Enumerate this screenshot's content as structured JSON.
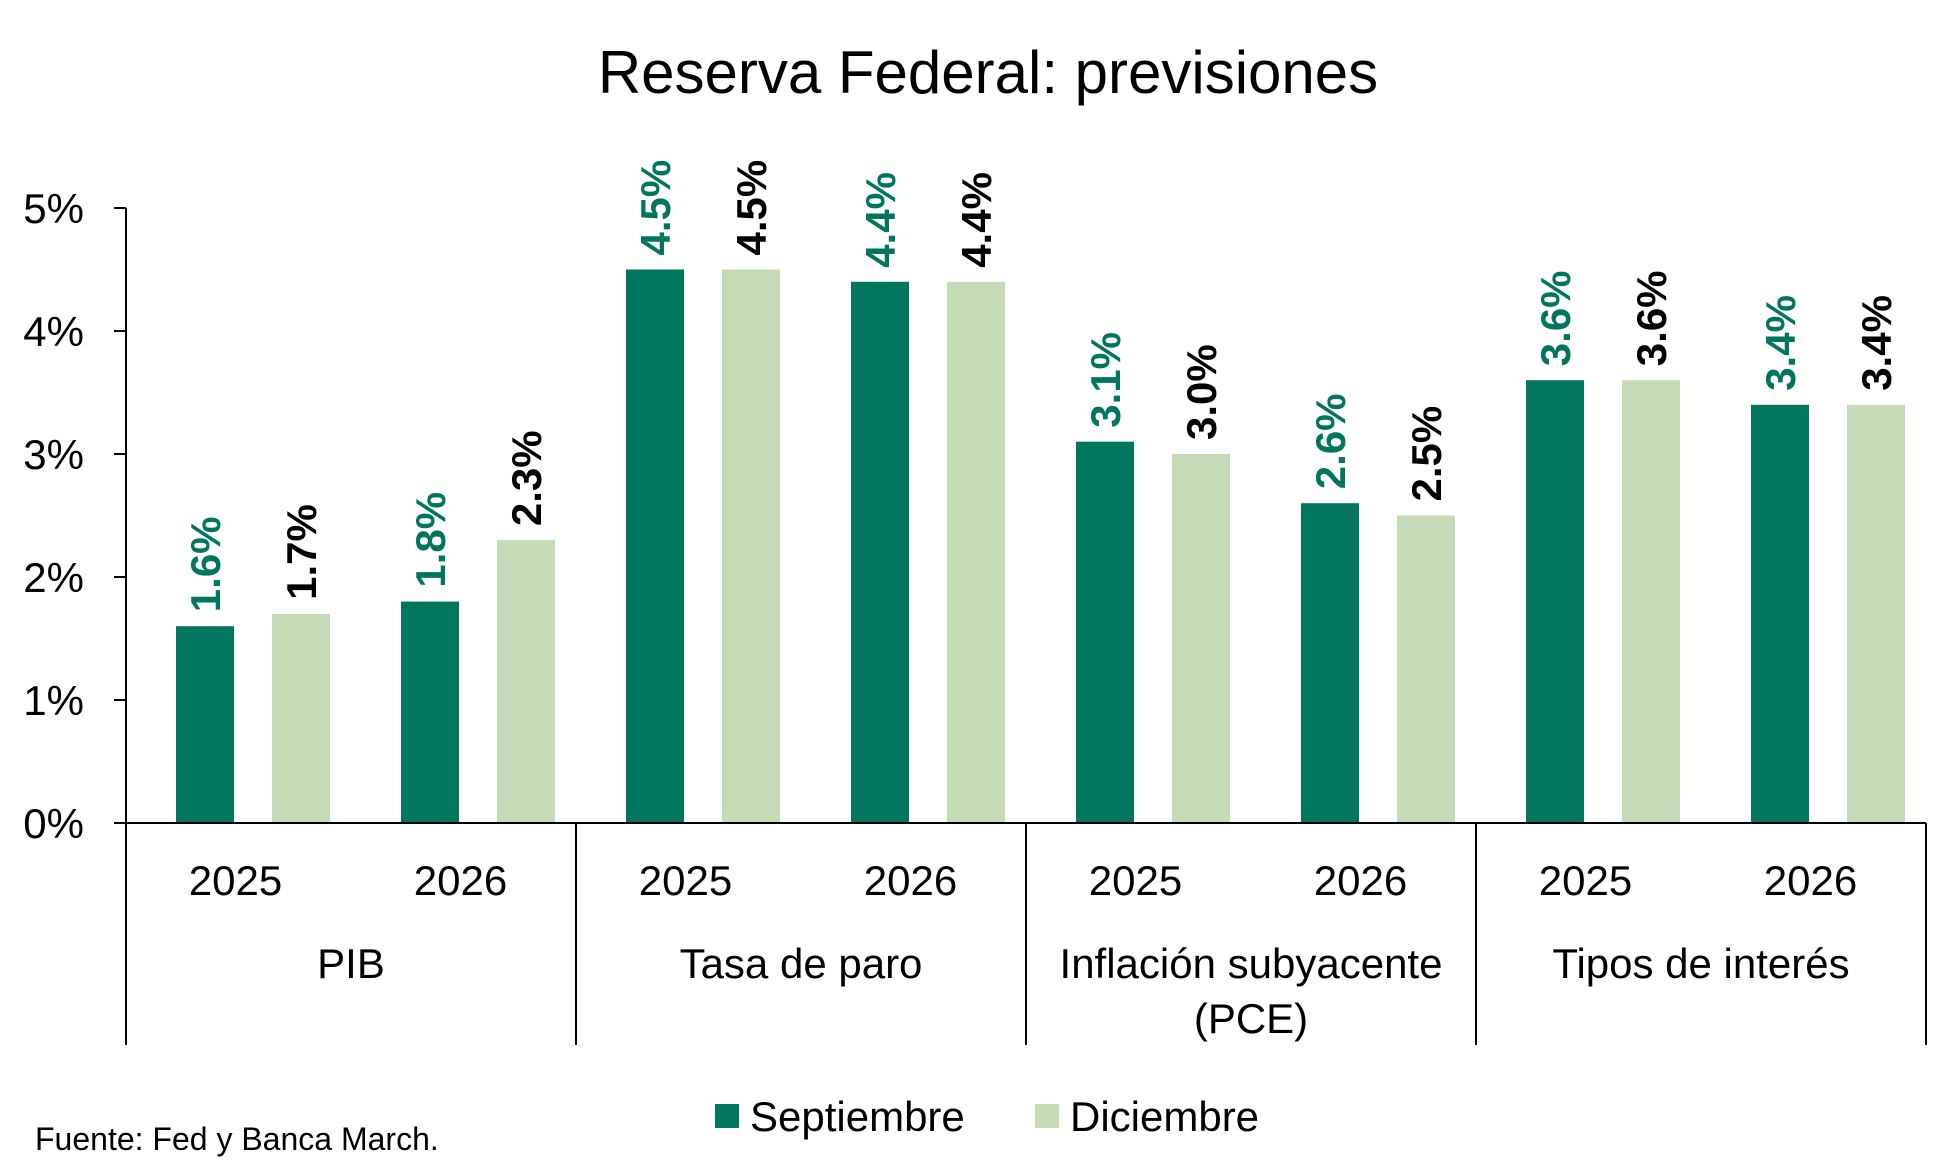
{
  "chart_data": {
    "type": "bar",
    "title": "Reserva Federal: previsiones",
    "groups": [
      {
        "label_lines": [
          "PIB"
        ],
        "categories": [
          "2025",
          "2026"
        ]
      },
      {
        "label_lines": [
          "Tasa de paro"
        ],
        "categories": [
          "2025",
          "2026"
        ]
      },
      {
        "label_lines": [
          "Inflación subyacente",
          "(PCE)"
        ],
        "categories": [
          "2025",
          "2026"
        ]
      },
      {
        "label_lines": [
          "Tipos de interés"
        ],
        "categories": [
          "2025",
          "2026"
        ]
      }
    ],
    "series": [
      {
        "name": "Septiembre",
        "color": "#00765F",
        "label_color": "#00765F",
        "values": [
          1.6,
          1.8,
          4.5,
          4.4,
          3.1,
          2.6,
          3.6,
          3.4
        ],
        "labels": [
          "1.6%",
          "1.8%",
          "4.5%",
          "4.4%",
          "3.1%",
          "2.6%",
          "3.6%",
          "3.4%"
        ]
      },
      {
        "name": "Diciembre",
        "color": "#C5DBB8",
        "label_color": "#000000",
        "values": [
          1.7,
          2.3,
          4.5,
          4.4,
          3.0,
          2.5,
          3.6,
          3.4
        ],
        "labels": [
          "1.7%",
          "2.3%",
          "4.5%",
          "4.4%",
          "3.0%",
          "2.5%",
          "3.6%",
          "3.4%"
        ]
      }
    ],
    "yaxis": {
      "min": 0,
      "max": 5,
      "ticks": [
        0,
        1,
        2,
        3,
        4,
        5
      ],
      "tick_labels": [
        "0%",
        "1%",
        "2%",
        "3%",
        "4%",
        "5%"
      ]
    },
    "legend_position": "bottom"
  },
  "source": "Fuente: Fed y Banca March."
}
